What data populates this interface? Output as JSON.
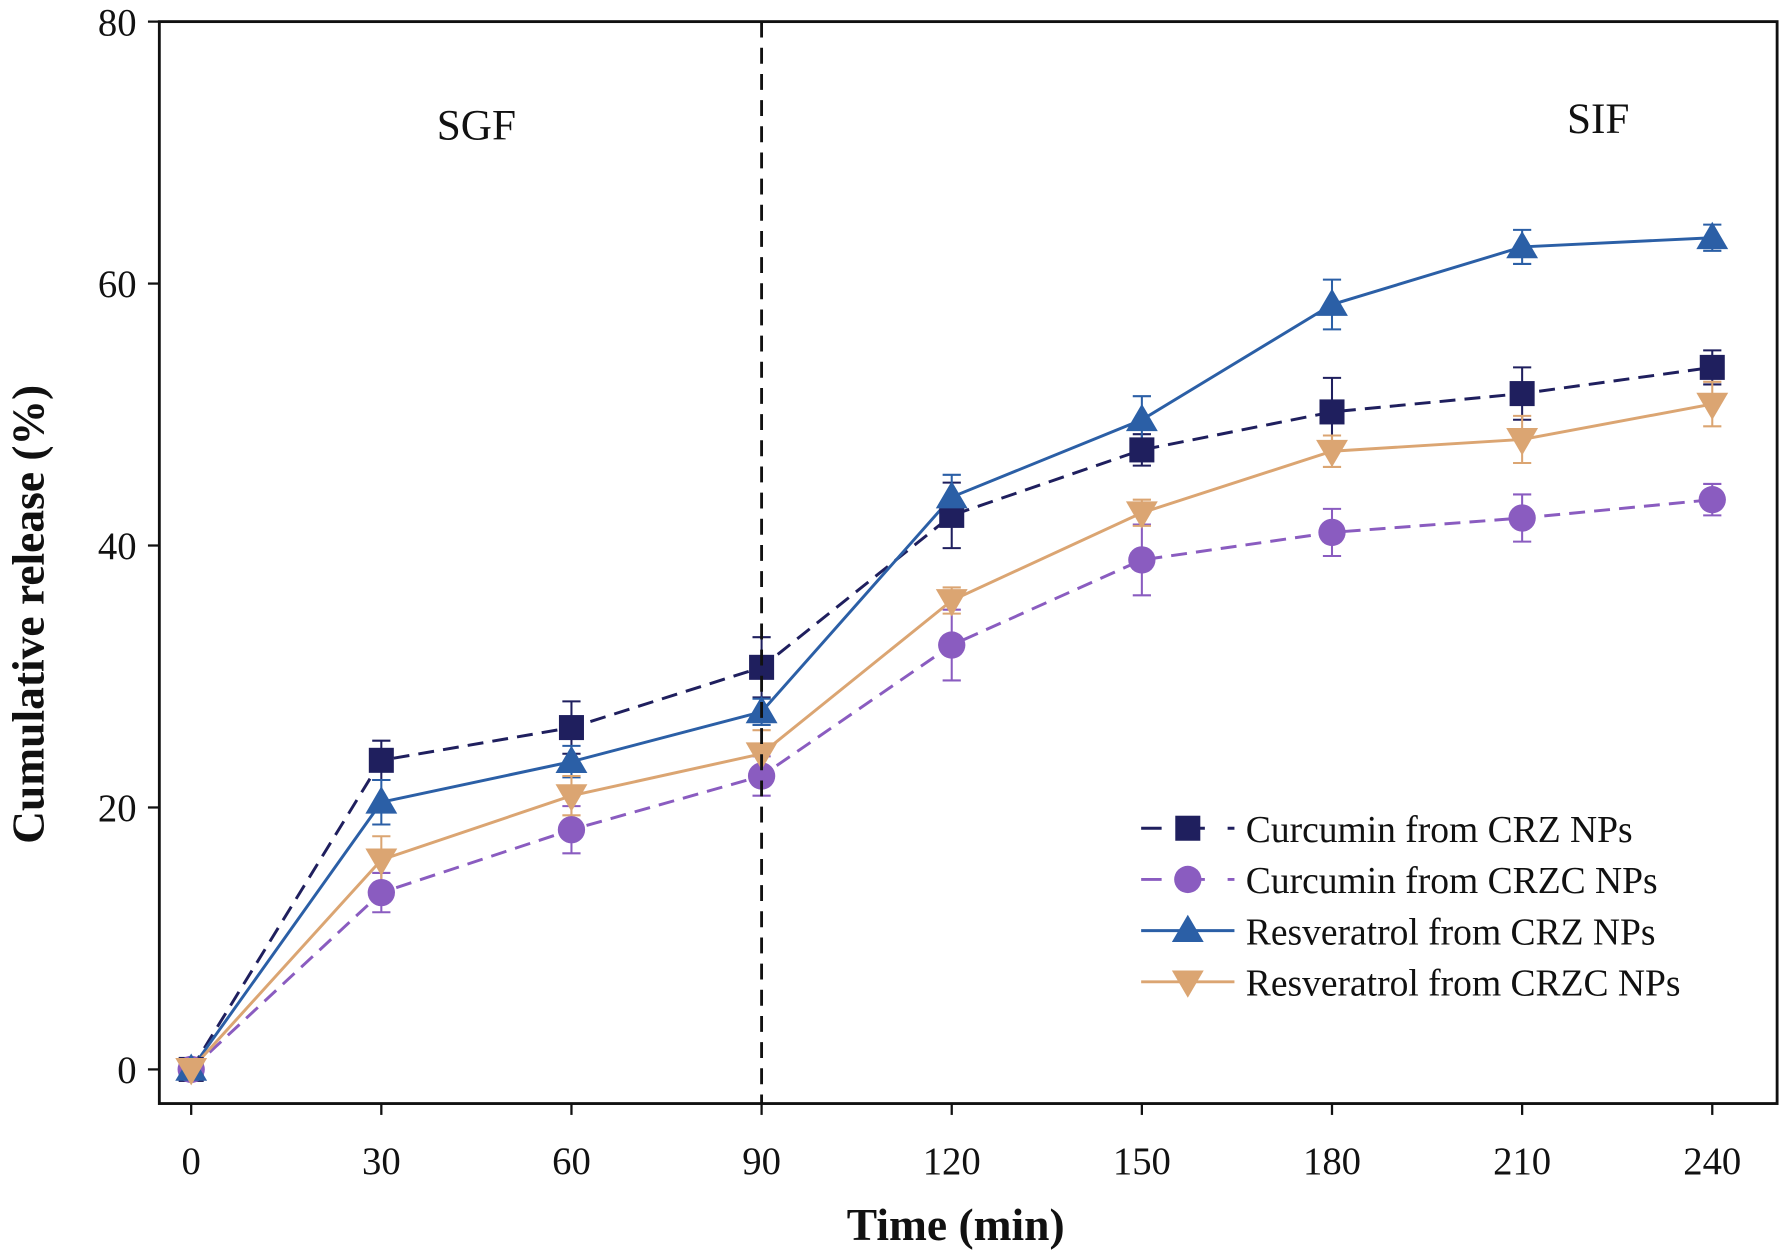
{
  "chart_data": {
    "type": "line",
    "title": "",
    "xlabel": "Time (min)",
    "ylabel": "Cumulative release (%)",
    "x": [
      0,
      30,
      60,
      90,
      120,
      150,
      180,
      210,
      240
    ],
    "xticks": [
      "0",
      "30",
      "60",
      "90",
      "120",
      "150",
      "180",
      "210",
      "240"
    ],
    "yticks": [
      "0",
      "20",
      "40",
      "60",
      "80"
    ],
    "xlim": [
      -5,
      250
    ],
    "ylim": [
      -2.6,
      80
    ],
    "grid": false,
    "legend_position": "bottom-right",
    "divider_x": 90,
    "annotations": [
      {
        "text": "SGF",
        "x": 45,
        "y": 71
      },
      {
        "text": "SIF",
        "x": 222,
        "y": 71.5
      }
    ],
    "series": [
      {
        "name": "Curcumin from CRZ NPs",
        "color": "#1f1f5e",
        "marker": "square",
        "dash": true,
        "values": [
          0,
          23.6,
          26.1,
          30.7,
          42.3,
          47.3,
          50.2,
          51.6,
          53.6
        ],
        "errors": [
          0,
          1.5,
          2.0,
          2.3,
          2.5,
          1.2,
          2.6,
          2.0,
          1.3
        ]
      },
      {
        "name": "Curcumin from CRZC NPs",
        "color": "#8a5cc0",
        "marker": "circle",
        "dash": true,
        "values": [
          0,
          13.5,
          18.3,
          22.4,
          32.4,
          38.9,
          41.0,
          42.1,
          43.5
        ],
        "errors": [
          0,
          1.5,
          1.8,
          1.5,
          2.7,
          2.7,
          1.8,
          1.8,
          1.2
        ]
      },
      {
        "name": "Resveratrol from CRZ NPs",
        "color": "#2b5fa6",
        "marker": "triangle-up",
        "dash": false,
        "values": [
          0,
          20.4,
          23.5,
          27.3,
          43.7,
          49.6,
          58.4,
          62.8,
          63.5
        ],
        "errors": [
          0,
          1.7,
          1.2,
          1.0,
          1.7,
          1.8,
          1.9,
          1.3,
          1.0
        ]
      },
      {
        "name": "Resveratrol from CRZC NPs",
        "color": "#dba572",
        "marker": "triangle-down",
        "dash": false,
        "values": [
          0,
          16.0,
          20.9,
          24.1,
          35.8,
          42.5,
          47.2,
          48.1,
          50.8
        ],
        "errors": [
          0,
          1.8,
          1.5,
          1.8,
          1.0,
          1.0,
          1.2,
          1.8,
          1.7
        ]
      }
    ]
  }
}
